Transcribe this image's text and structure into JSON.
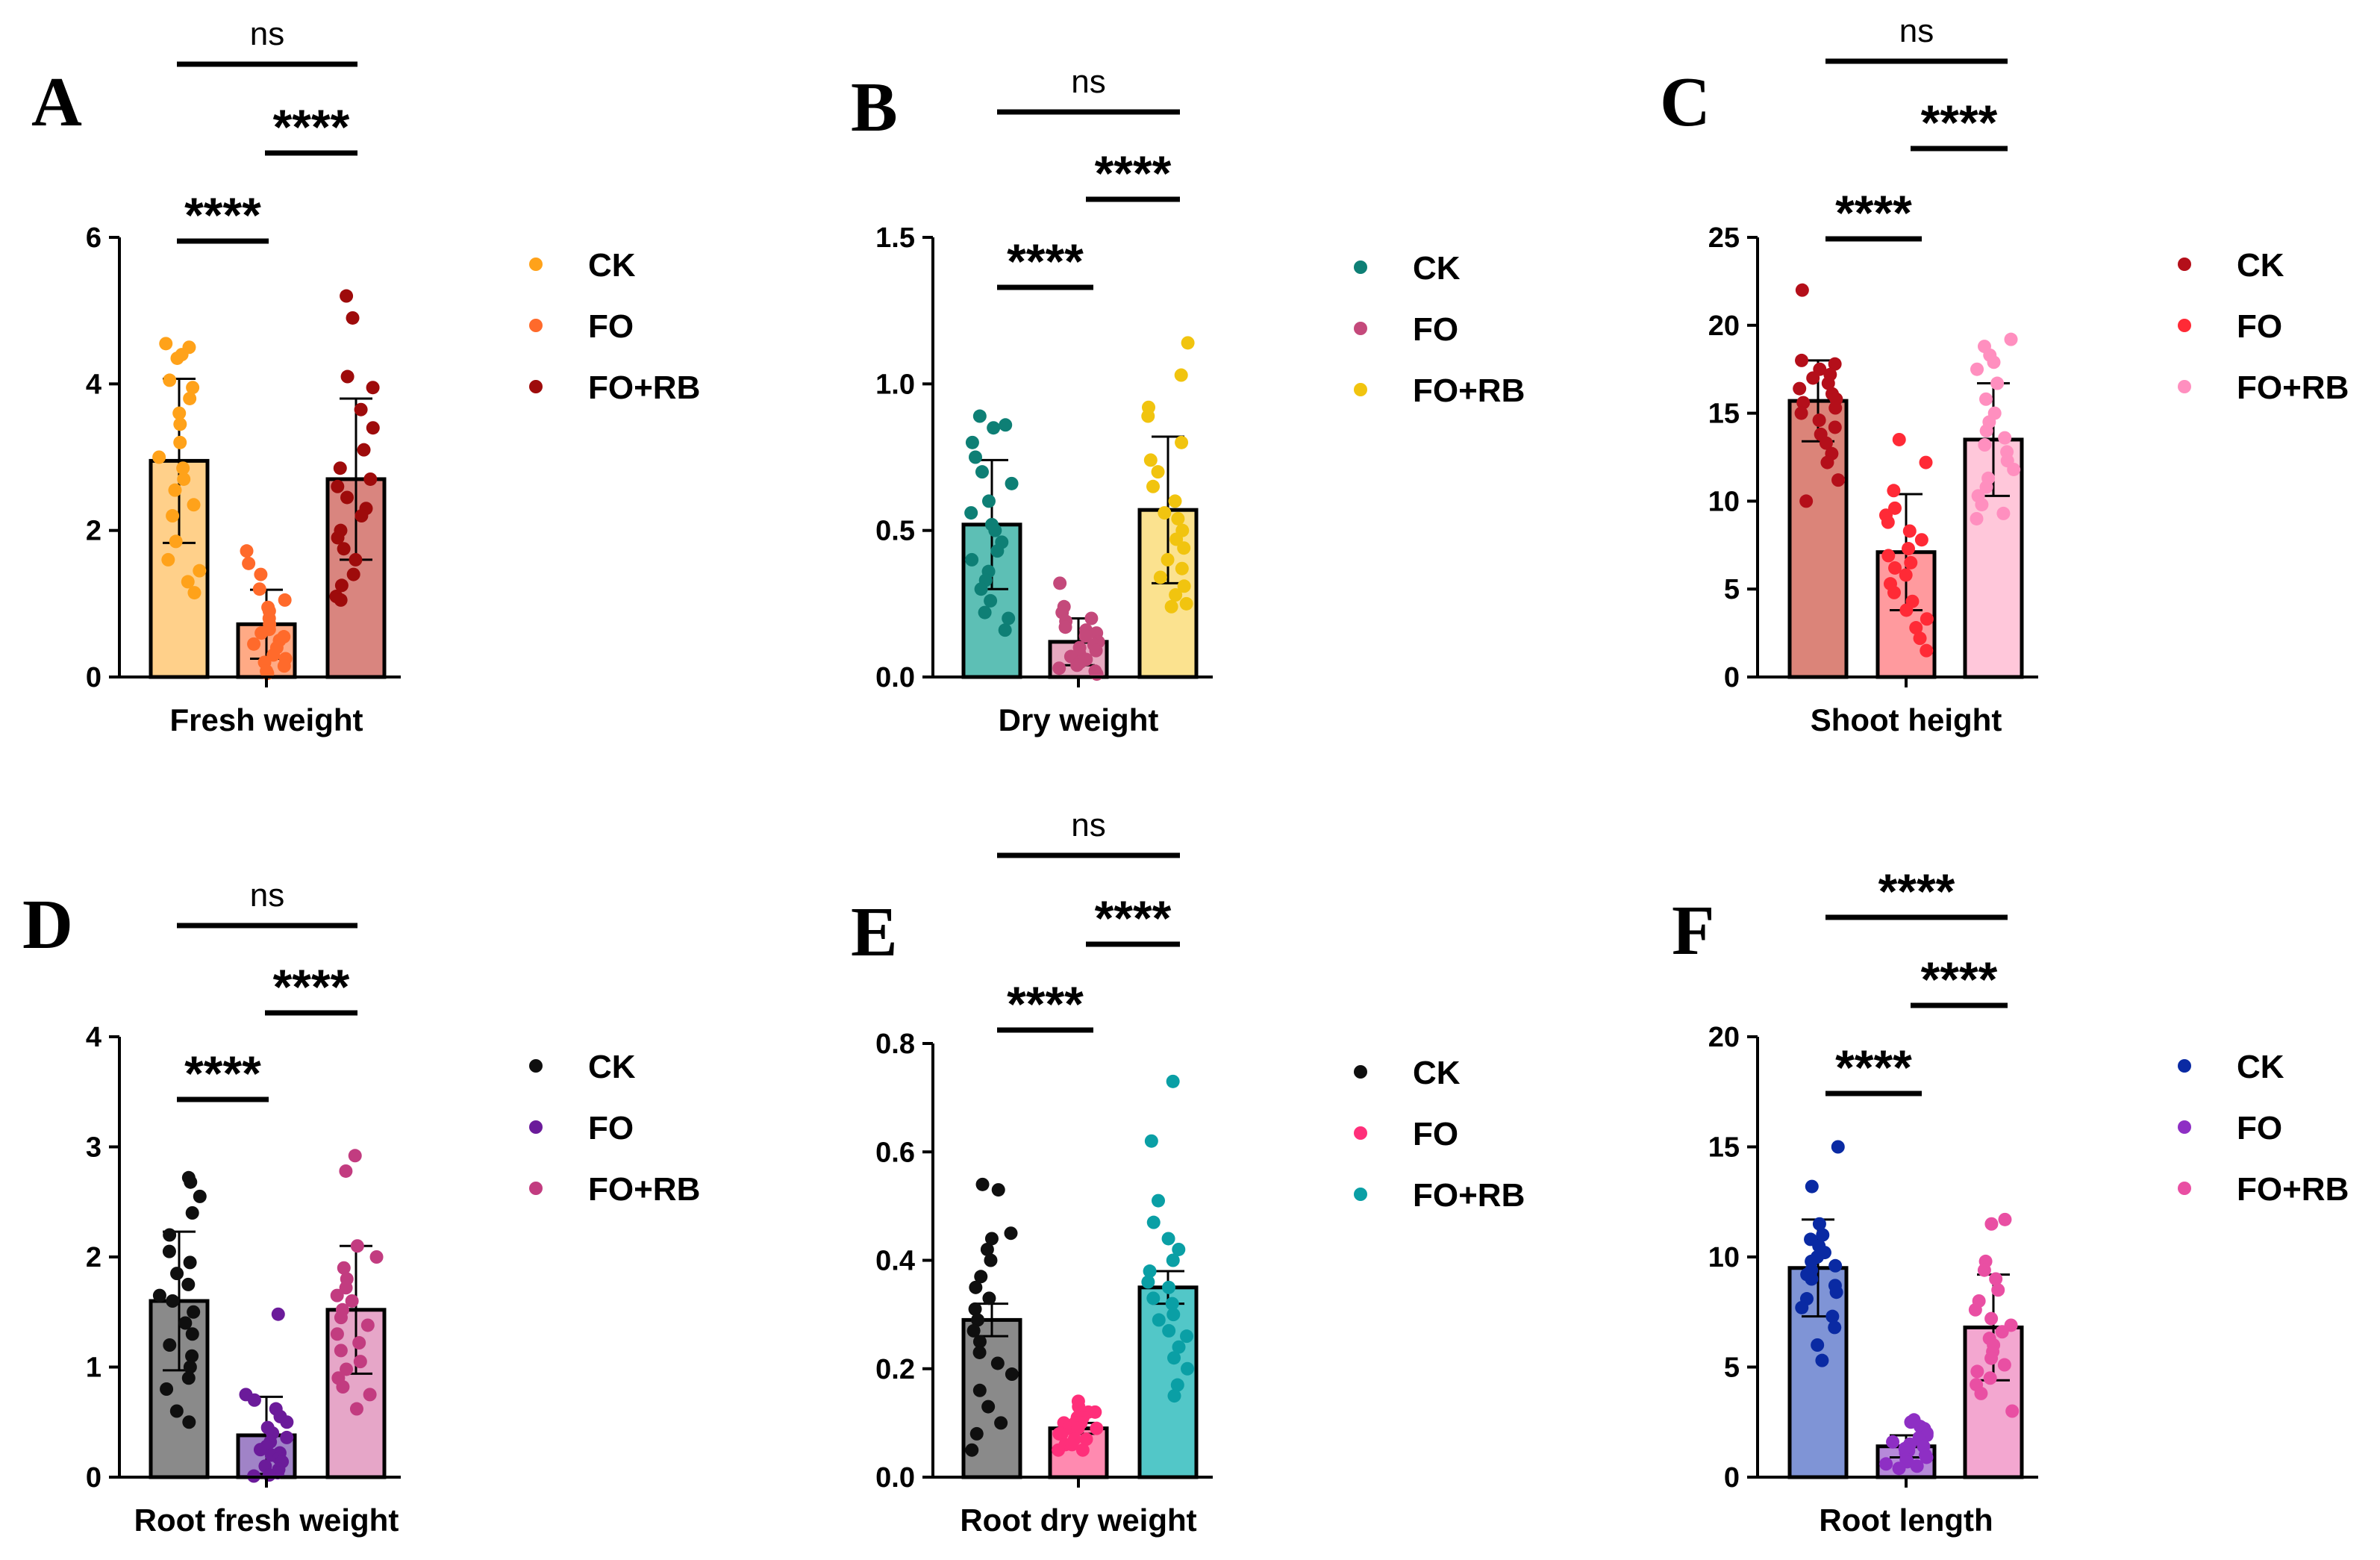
{
  "chart_data": [
    {
      "id": "A",
      "type": "bar",
      "title": "",
      "xlabel": "Fresh weight",
      "ylabel": "",
      "ylim": [
        0,
        6
      ],
      "yticks": [
        0,
        2,
        4,
        6
      ],
      "ytick_labels": [
        "0",
        "2",
        "4",
        "6"
      ],
      "series": [
        {
          "name": "CK",
          "mean": 2.95,
          "sd": 1.12,
          "bar_color": "#FFD08A",
          "dot_color": "#FFA21A",
          "points": [
            4.55,
            4.5,
            4.4,
            4.35,
            4.05,
            3.95,
            3.8,
            3.6,
            3.45,
            3.2,
            3.0,
            2.85,
            2.7,
            2.55,
            2.35,
            2.2,
            1.85,
            1.6,
            1.45,
            1.3,
            1.15
          ]
        },
        {
          "name": "FO",
          "mean": 0.72,
          "sd": 0.47,
          "bar_color": "#FFAA85",
          "dot_color": "#FF6A2B",
          "points": [
            1.72,
            1.55,
            1.4,
            1.2,
            1.05,
            0.95,
            0.9,
            0.8,
            0.72,
            0.65,
            0.6,
            0.55,
            0.5,
            0.45,
            0.4,
            0.3,
            0.25,
            0.2,
            0.15,
            0.08,
            0.05
          ]
        },
        {
          "name": "FO+RB",
          "mean": 2.7,
          "sd": 1.1,
          "bar_color": "#D9857F",
          "dot_color": "#9E0B0B",
          "points": [
            5.2,
            4.9,
            4.1,
            3.95,
            3.65,
            3.4,
            3.1,
            2.85,
            2.7,
            2.6,
            2.45,
            2.3,
            2.2,
            2.0,
            1.9,
            1.75,
            1.6,
            1.4,
            1.25,
            1.1,
            1.05
          ]
        }
      ],
      "comparisons": [
        {
          "label": "****",
          "pair": [
            "CK",
            "FO"
          ]
        },
        {
          "label": "****",
          "pair": [
            "FO",
            "FO+RB"
          ]
        },
        {
          "label": "ns",
          "pair": [
            "CK",
            "FO+RB"
          ]
        }
      ]
    },
    {
      "id": "B",
      "type": "bar",
      "title": "",
      "xlabel": "Dry weight",
      "ylabel": "",
      "ylim": [
        0,
        1.5
      ],
      "yticks": [
        0,
        0.5,
        1.0,
        1.5
      ],
      "ytick_labels": [
        "0.0",
        "0.5",
        "1.0",
        "1.5"
      ],
      "series": [
        {
          "name": "CK",
          "mean": 0.52,
          "sd": 0.22,
          "bar_color": "#5DBFB5",
          "dot_color": "#0E7F75",
          "points": [
            0.89,
            0.86,
            0.85,
            0.8,
            0.75,
            0.7,
            0.66,
            0.6,
            0.56,
            0.52,
            0.5,
            0.46,
            0.43,
            0.4,
            0.36,
            0.33,
            0.3,
            0.26,
            0.22,
            0.2,
            0.16
          ]
        },
        {
          "name": "FO",
          "mean": 0.12,
          "sd": 0.08,
          "bar_color": "#E7A9C0",
          "dot_color": "#C4497B",
          "points": [
            0.32,
            0.24,
            0.22,
            0.2,
            0.19,
            0.17,
            0.16,
            0.15,
            0.14,
            0.12,
            0.11,
            0.1,
            0.09,
            0.08,
            0.07,
            0.06,
            0.05,
            0.04,
            0.03,
            0.02,
            0.01
          ]
        },
        {
          "name": "FO+RB",
          "mean": 0.57,
          "sd": 0.25,
          "bar_color": "#FBE28F",
          "dot_color": "#F1C40F",
          "points": [
            1.14,
            1.03,
            0.92,
            0.89,
            0.8,
            0.74,
            0.7,
            0.65,
            0.6,
            0.56,
            0.54,
            0.5,
            0.47,
            0.44,
            0.4,
            0.37,
            0.34,
            0.31,
            0.28,
            0.25,
            0.24
          ]
        }
      ],
      "comparisons": [
        {
          "label": "****",
          "pair": [
            "CK",
            "FO"
          ]
        },
        {
          "label": "****",
          "pair": [
            "FO",
            "FO+RB"
          ]
        },
        {
          "label": "ns",
          "pair": [
            "CK",
            "FO+RB"
          ]
        }
      ]
    },
    {
      "id": "C",
      "type": "bar",
      "title": "",
      "xlabel": "Shoot height",
      "ylabel": "",
      "ylim": [
        0,
        25
      ],
      "yticks": [
        0,
        5,
        10,
        15,
        20,
        25
      ],
      "ytick_labels": [
        "0",
        "5",
        "10",
        "15",
        "20",
        "25"
      ],
      "series": [
        {
          "name": "CK",
          "mean": 15.7,
          "sd": 2.3,
          "bar_color": "#DB8479",
          "dot_color": "#B40F1A",
          "points": [
            22.0,
            18.0,
            17.8,
            17.5,
            17.2,
            17.0,
            16.7,
            16.4,
            16.1,
            15.8,
            15.6,
            15.3,
            15.0,
            14.6,
            14.2,
            13.8,
            13.3,
            12.7,
            12.2,
            11.2,
            10.0
          ]
        },
        {
          "name": "FO",
          "mean": 7.1,
          "sd": 3.3,
          "bar_color": "#FF9A9E",
          "dot_color": "#FF2A36",
          "points": [
            13.5,
            12.2,
            10.6,
            9.6,
            9.2,
            8.8,
            8.3,
            7.8,
            7.3,
            6.9,
            6.5,
            6.2,
            5.8,
            5.3,
            4.8,
            4.3,
            3.8,
            3.3,
            2.8,
            2.2,
            1.5
          ]
        },
        {
          "name": "FO+RB",
          "mean": 13.5,
          "sd": 3.2,
          "bar_color": "#FFC7DA",
          "dot_color": "#FF8FBF",
          "points": [
            19.2,
            18.8,
            18.3,
            17.9,
            17.5,
            16.7,
            15.8,
            15.0,
            14.5,
            14.0,
            13.6,
            13.2,
            12.8,
            12.3,
            11.8,
            11.3,
            10.8,
            10.3,
            9.8,
            9.3,
            9.0
          ]
        }
      ],
      "comparisons": [
        {
          "label": "****",
          "pair": [
            "CK",
            "FO"
          ]
        },
        {
          "label": "****",
          "pair": [
            "FO",
            "FO+RB"
          ]
        },
        {
          "label": "ns",
          "pair": [
            "CK",
            "FO+RB"
          ]
        }
      ]
    },
    {
      "id": "D",
      "type": "bar",
      "title": "",
      "xlabel": "Root fresh weight",
      "ylabel": "",
      "ylim": [
        0,
        4
      ],
      "yticks": [
        0,
        1,
        2,
        3,
        4
      ],
      "ytick_labels": [
        "0",
        "1",
        "2",
        "3",
        "4"
      ],
      "series": [
        {
          "name": "CK",
          "mean": 1.6,
          "sd": 0.63,
          "bar_color": "#8A8A8A",
          "dot_color": "#0F0F0F",
          "points": [
            2.72,
            2.68,
            2.55,
            2.4,
            2.2,
            2.05,
            1.95,
            1.85,
            1.75,
            1.65,
            1.6,
            1.5,
            1.4,
            1.3,
            1.2,
            1.1,
            1.0,
            0.9,
            0.8,
            0.6,
            0.5
          ]
        },
        {
          "name": "FO",
          "mean": 0.38,
          "sd": 0.35,
          "bar_color": "#A083C7",
          "dot_color": "#6B1B9A",
          "points": [
            1.48,
            0.75,
            0.7,
            0.62,
            0.55,
            0.5,
            0.45,
            0.4,
            0.36,
            0.32,
            0.28,
            0.25,
            0.22,
            0.2,
            0.17,
            0.14,
            0.1,
            0.07,
            0.04,
            0.02,
            0.01
          ]
        },
        {
          "name": "FO+RB",
          "mean": 1.52,
          "sd": 0.58,
          "bar_color": "#E6A6C8",
          "dot_color": "#C23C80",
          "points": [
            2.92,
            2.78,
            2.1,
            2.0,
            1.9,
            1.8,
            1.72,
            1.65,
            1.6,
            1.52,
            1.45,
            1.38,
            1.3,
            1.22,
            1.15,
            1.05,
            0.98,
            0.9,
            0.82,
            0.75,
            0.62
          ]
        }
      ],
      "comparisons": [
        {
          "label": "****",
          "pair": [
            "CK",
            "FO"
          ]
        },
        {
          "label": "****",
          "pair": [
            "FO",
            "FO+RB"
          ]
        },
        {
          "label": "ns",
          "pair": [
            "CK",
            "FO+RB"
          ]
        }
      ]
    },
    {
      "id": "E",
      "type": "bar",
      "title": "",
      "xlabel": "Root dry weight",
      "ylabel": "",
      "ylim": [
        0,
        0.8
      ],
      "yticks": [
        0,
        0.2,
        0.4,
        0.6,
        0.8
      ],
      "ytick_labels": [
        "0.0",
        "0.2",
        "0.4",
        "0.6",
        "0.8"
      ],
      "series": [
        {
          "name": "CK",
          "mean": 0.29,
          "sd": 0.03,
          "bar_color": "#8A8A8A",
          "dot_color": "#0F0F0F",
          "points": [
            0.54,
            0.53,
            0.45,
            0.44,
            0.42,
            0.4,
            0.37,
            0.35,
            0.33,
            0.31,
            0.29,
            0.27,
            0.25,
            0.23,
            0.21,
            0.19,
            0.16,
            0.13,
            0.1,
            0.08,
            0.05
          ]
        },
        {
          "name": "FO",
          "mean": 0.09,
          "sd": 0.01,
          "bar_color": "#FF8AB0",
          "dot_color": "#FF2F7A",
          "points": [
            0.14,
            0.13,
            0.12,
            0.12,
            0.11,
            0.11,
            0.1,
            0.1,
            0.1,
            0.09,
            0.09,
            0.09,
            0.08,
            0.08,
            0.08,
            0.07,
            0.07,
            0.06,
            0.06,
            0.05,
            0.05
          ]
        },
        {
          "name": "FO+RB",
          "mean": 0.35,
          "sd": 0.03,
          "bar_color": "#52C7C8",
          "dot_color": "#0A9FA5",
          "points": [
            0.73,
            0.62,
            0.51,
            0.47,
            0.44,
            0.42,
            0.4,
            0.38,
            0.36,
            0.35,
            0.33,
            0.32,
            0.3,
            0.29,
            0.27,
            0.26,
            0.24,
            0.22,
            0.2,
            0.17,
            0.15
          ]
        }
      ],
      "comparisons": [
        {
          "label": "****",
          "pair": [
            "CK",
            "FO"
          ]
        },
        {
          "label": "****",
          "pair": [
            "FO",
            "FO+RB"
          ]
        },
        {
          "label": "ns",
          "pair": [
            "CK",
            "FO+RB"
          ]
        }
      ]
    },
    {
      "id": "F",
      "type": "bar",
      "title": "",
      "xlabel": "Root length",
      "ylabel": "",
      "ylim": [
        0,
        20
      ],
      "yticks": [
        0,
        5,
        10,
        15,
        20
      ],
      "ytick_labels": [
        "0",
        "5",
        "10",
        "15",
        "20"
      ],
      "series": [
        {
          "name": "CK",
          "mean": 9.5,
          "sd": 2.2,
          "bar_color": "#7F94D6",
          "dot_color": "#0A2AA3",
          "points": [
            15.0,
            13.2,
            11.5,
            11.0,
            10.8,
            10.5,
            10.2,
            10.0,
            9.8,
            9.6,
            9.4,
            9.2,
            9.0,
            8.7,
            8.4,
            8.1,
            7.7,
            7.3,
            6.8,
            6.0,
            5.3
          ]
        },
        {
          "name": "FO",
          "mean": 1.4,
          "sd": 0.5,
          "bar_color": "#B68AD9",
          "dot_color": "#8E2FC4",
          "points": [
            2.6,
            2.5,
            2.3,
            2.2,
            2.0,
            1.9,
            1.8,
            1.7,
            1.6,
            1.5,
            1.4,
            1.3,
            1.2,
            1.1,
            1.0,
            0.9,
            0.8,
            0.7,
            0.6,
            0.5,
            0.4
          ]
        },
        {
          "name": "FO+RB",
          "mean": 6.8,
          "sd": 2.4,
          "bar_color": "#F3A7D0",
          "dot_color": "#E94FA3",
          "points": [
            11.7,
            11.5,
            9.8,
            9.4,
            9.0,
            8.5,
            8.0,
            7.6,
            7.2,
            6.9,
            6.6,
            6.3,
            6.0,
            5.7,
            5.4,
            5.1,
            4.8,
            4.5,
            4.2,
            3.8,
            3.0
          ]
        }
      ],
      "comparisons": [
        {
          "label": "****",
          "pair": [
            "CK",
            "FO"
          ]
        },
        {
          "label": "****",
          "pair": [
            "FO",
            "FO+RB"
          ]
        },
        {
          "label": "****",
          "pair": [
            "CK",
            "FO+RB"
          ]
        }
      ]
    }
  ]
}
